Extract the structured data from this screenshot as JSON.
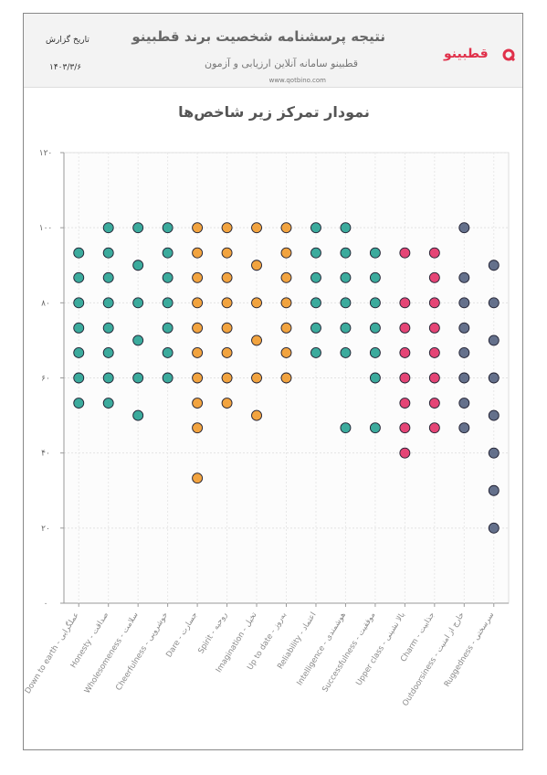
{
  "header": {
    "title": "نتیجه پرسشنامه شخصیت برند قطبینو",
    "subtitle": "قطبینو سامانه آنلاین ارزیابی و آزمون",
    "website": "www.qotbino.com",
    "date_label": "تاریخ گزارش",
    "date": "۱۴۰۳/۳/۶",
    "logo": "قطبینو"
  },
  "chart_data": {
    "type": "strip",
    "title": "نمودار تمرکز زیر شاخص‌ها",
    "categories": [
      "Down to earth - عملگرایی",
      "Honesty - صداقت",
      "Wholesomeness - سلامت",
      "Cheerfulness - خوشرویی",
      "Dare - جسارت",
      "Spirit - روحیه",
      "Imagination - تخیل",
      "Up to date - به‌روز",
      "Reliability - اعتماد",
      "Intelligence - هوشمندی",
      "Successfulness - موفقیت",
      "Upper class - بالا نشینی",
      "Charm - جذابیت",
      "Outdoorsiness - خارج از امنیت",
      "Ruggedness - سرسختی"
    ],
    "colors": [
      "#1a9c8c",
      "#1a9c8c",
      "#1a9c8c",
      "#1a9c8c",
      "#f0941e",
      "#f0941e",
      "#f0941e",
      "#f0941e",
      "#1a9c8c",
      "#1a9c8c",
      "#1a9c8c",
      "#e0245e",
      "#e0245e",
      "#4a5878",
      "#4a5878"
    ],
    "values": [
      [
        93.3,
        86.7,
        80,
        73.3,
        66.7,
        60,
        53.3
      ],
      [
        100,
        93.3,
        86.7,
        80,
        73.3,
        66.7,
        60,
        53.3
      ],
      [
        100,
        90,
        80,
        70,
        60,
        50
      ],
      [
        100,
        93.3,
        86.7,
        80,
        73.3,
        66.7,
        60
      ],
      [
        100,
        93.3,
        86.7,
        80,
        73.3,
        66.7,
        60,
        53.3,
        46.7,
        33.3
      ],
      [
        100,
        93.3,
        86.7,
        80,
        73.3,
        66.7,
        60,
        53.3
      ],
      [
        100,
        90,
        80,
        70,
        60,
        50
      ],
      [
        100,
        93.3,
        86.7,
        80,
        73.3,
        66.7,
        60
      ],
      [
        100,
        93.3,
        86.7,
        80,
        73.3,
        66.7
      ],
      [
        100,
        93.3,
        86.7,
        80,
        73.3,
        66.7,
        46.7
      ],
      [
        93.3,
        86.7,
        80,
        73.3,
        66.7,
        60,
        46.7
      ],
      [
        93.3,
        80,
        73.3,
        66.7,
        60,
        53.3,
        46.7,
        40
      ],
      [
        93.3,
        86.7,
        80,
        73.3,
        66.7,
        60,
        53.3,
        46.7
      ],
      [
        100,
        86.7,
        80,
        73.3,
        66.7,
        60,
        53.3,
        46.7
      ],
      [
        90,
        80,
        70,
        60,
        50,
        40,
        30,
        20
      ]
    ],
    "ylim": [
      0,
      120
    ],
    "yticks": [
      {
        "value": 0,
        "label": "۰"
      },
      {
        "value": 20,
        "label": "۲۰"
      },
      {
        "value": 40,
        "label": "۴۰"
      },
      {
        "value": 60,
        "label": "۶۰"
      },
      {
        "value": 80,
        "label": "۸۰"
      },
      {
        "value": 100,
        "label": "۱۰۰"
      },
      {
        "value": 120,
        "label": "۱۲۰"
      }
    ],
    "grid": true
  }
}
